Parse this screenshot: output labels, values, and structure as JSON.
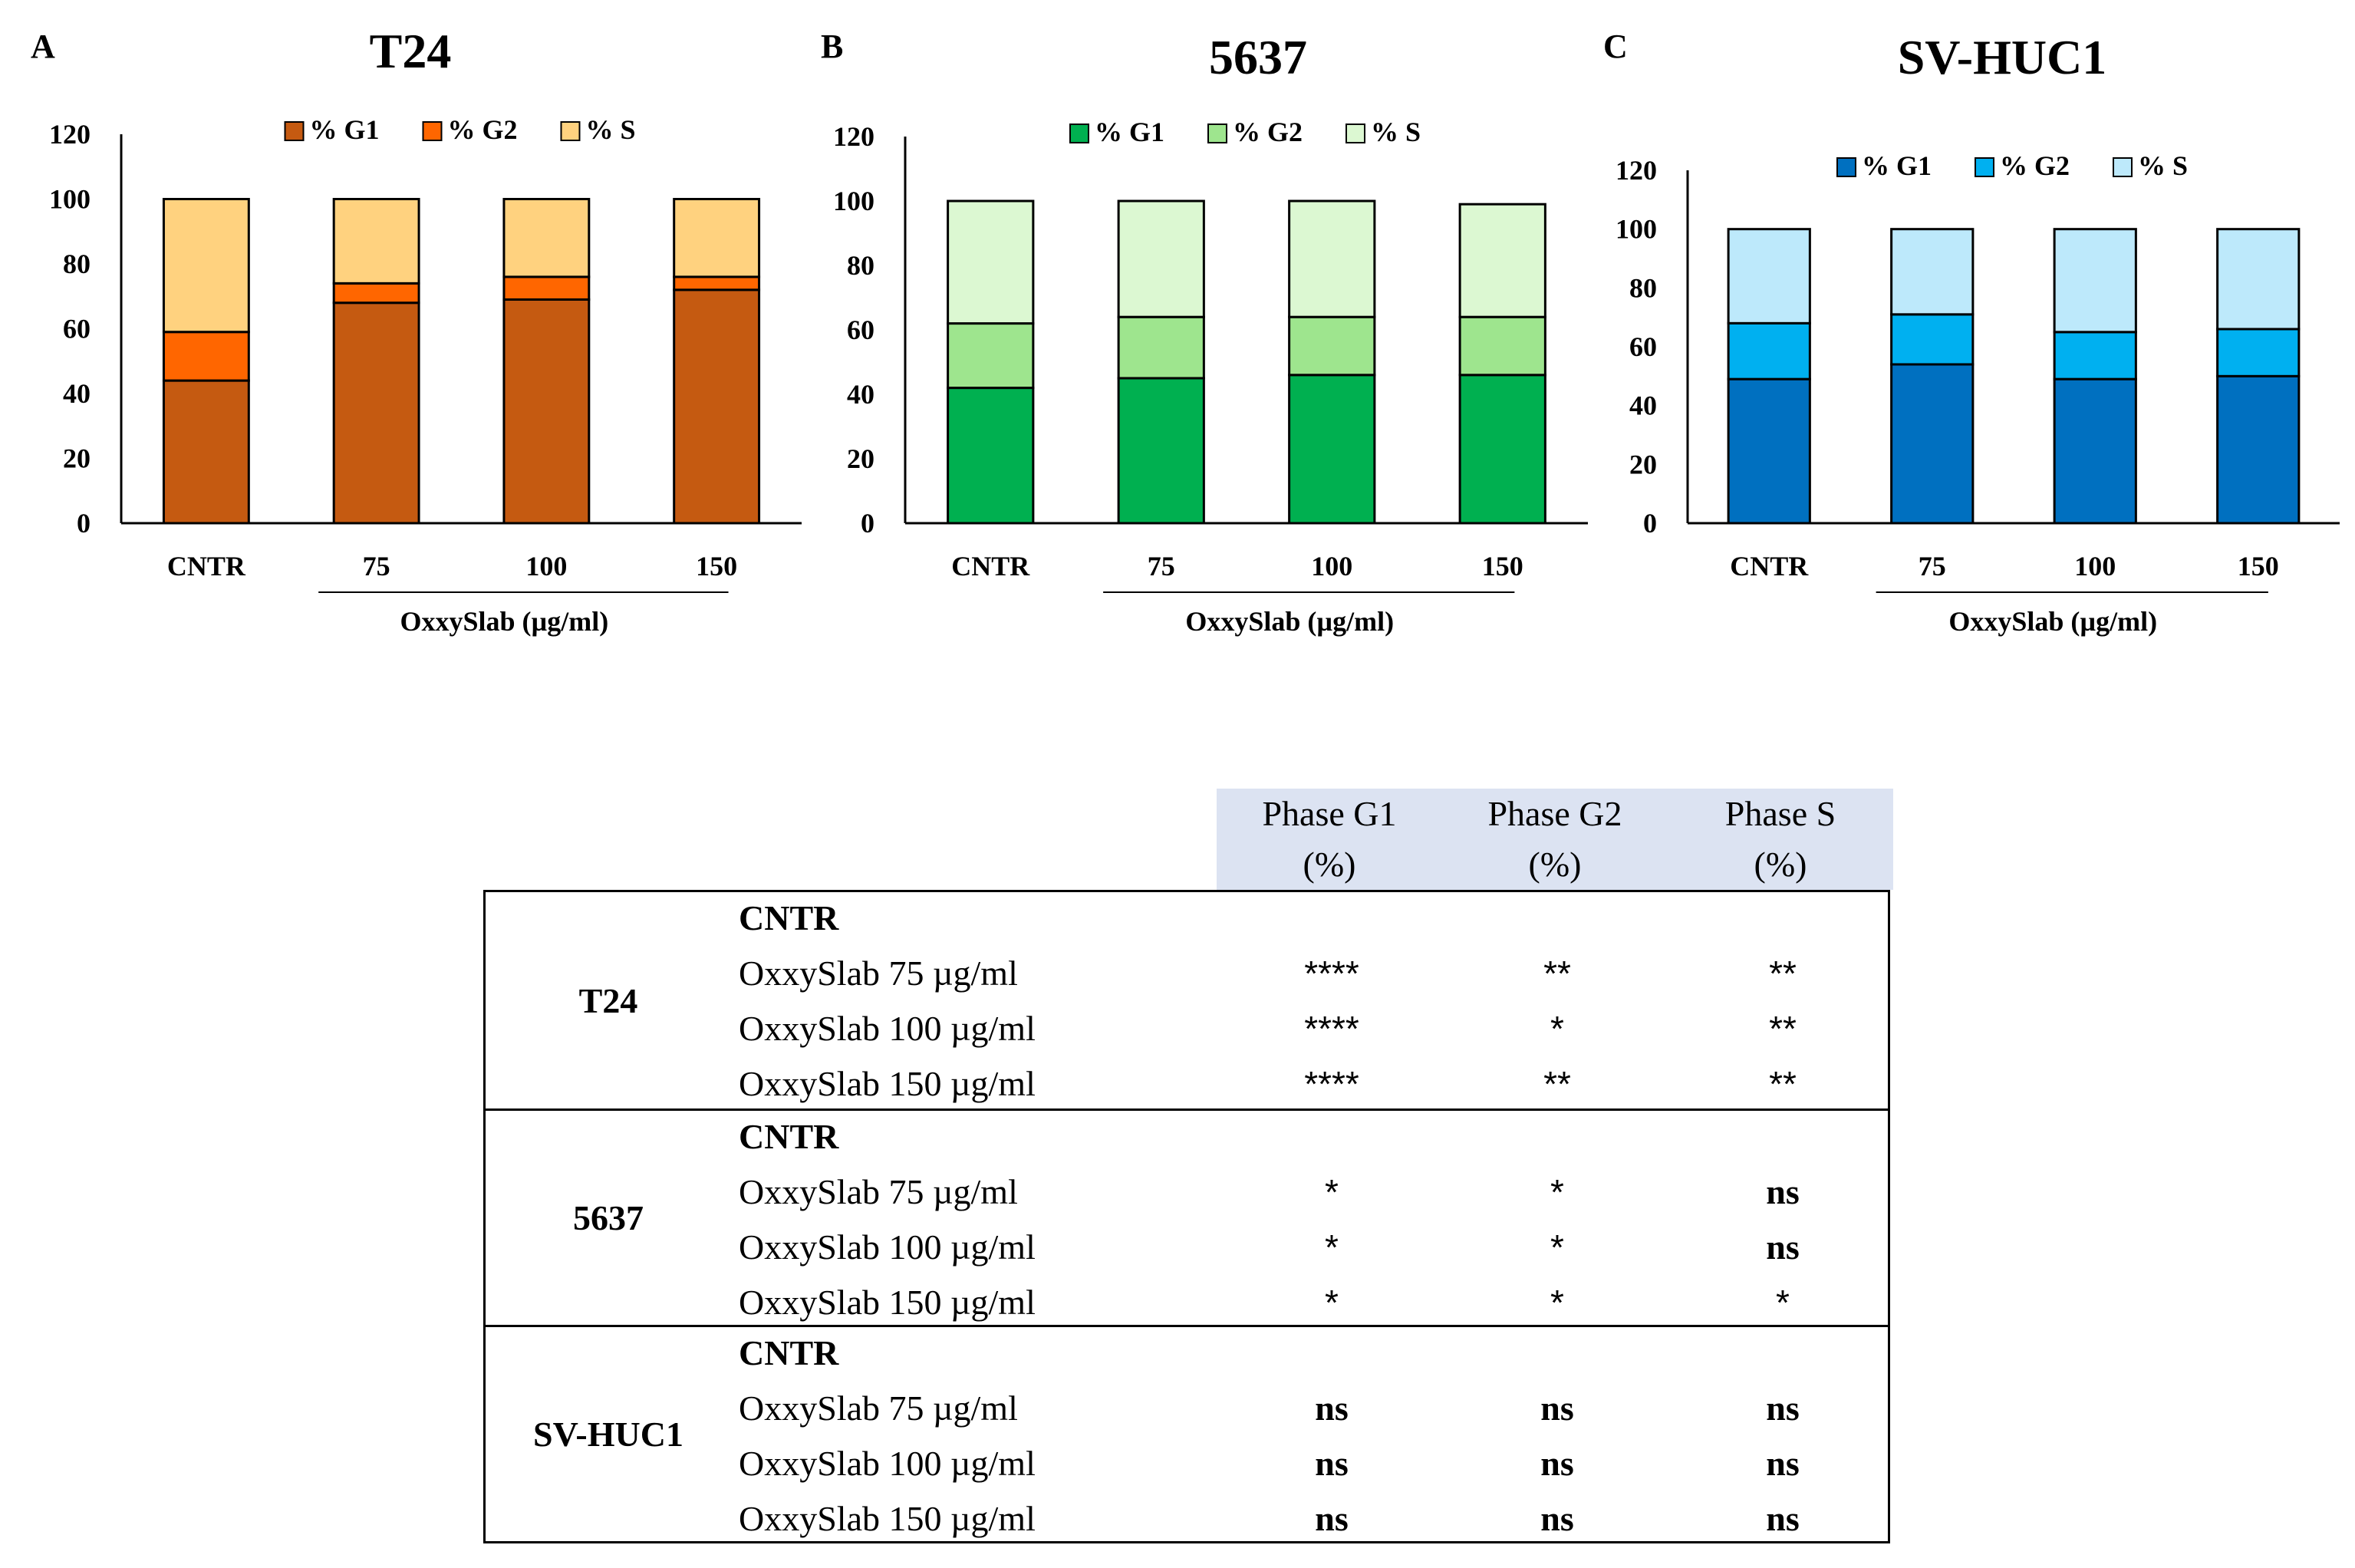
{
  "chart_data": [
    {
      "type": "bar",
      "stacked": true,
      "panel": "A",
      "title": "T24",
      "categories": [
        "CNTR",
        "75",
        "100",
        "150"
      ],
      "xlabel": "OxxySlab (µg/ml)",
      "ylim": [
        0,
        120
      ],
      "yticks": [
        0,
        20,
        40,
        60,
        80,
        100,
        120
      ],
      "legend_position": "top",
      "series": [
        {
          "name": "% G1",
          "color": "#c55a11",
          "values": [
            44,
            68,
            69,
            72
          ]
        },
        {
          "name": "% G2",
          "color": "#ff6600",
          "values": [
            15,
            6,
            7,
            4
          ]
        },
        {
          "name": "% S",
          "color": "#ffd27f",
          "values": [
            41,
            26,
            24,
            24
          ]
        }
      ]
    },
    {
      "type": "bar",
      "stacked": true,
      "panel": "B",
      "title": "5637",
      "categories": [
        "CNTR",
        "75",
        "100",
        "150"
      ],
      "xlabel": "OxxySlab (µg/ml)",
      "ylim": [
        0,
        120
      ],
      "yticks": [
        0,
        20,
        40,
        60,
        80,
        100,
        120
      ],
      "legend_position": "top",
      "series": [
        {
          "name": "% G1",
          "color": "#00b050",
          "values": [
            42,
            45,
            46,
            46
          ]
        },
        {
          "name": "% G2",
          "color": "#9ee58e",
          "values": [
            20,
            19,
            18,
            18
          ]
        },
        {
          "name": "% S",
          "color": "#dcf8d2",
          "values": [
            38,
            36,
            36,
            35
          ]
        }
      ]
    },
    {
      "type": "bar",
      "stacked": true,
      "panel": "C",
      "title": "SV-HUC1",
      "categories": [
        "CNTR",
        "75",
        "100",
        "150"
      ],
      "xlabel": "OxxySlab (µg/ml)",
      "ylim": [
        0,
        120
      ],
      "yticks": [
        0,
        20,
        40,
        60,
        80,
        100,
        120
      ],
      "legend_position": "top",
      "series": [
        {
          "name": "% G1",
          "color": "#0070c0",
          "values": [
            49,
            54,
            49,
            50
          ]
        },
        {
          "name": "% G2",
          "color": "#00b0f0",
          "values": [
            19,
            17,
            16,
            16
          ]
        },
        {
          "name": "% S",
          "color": "#bde9fb",
          "values": [
            32,
            29,
            35,
            34
          ]
        }
      ]
    }
  ],
  "stats_table": {
    "headers": [
      {
        "line1": "Phase G1",
        "line2": "(%)"
      },
      {
        "line1": "Phase G2",
        "line2": "(%)"
      },
      {
        "line1": "Phase S",
        "line2": "(%)"
      }
    ],
    "groups": [
      {
        "name": "T24",
        "rows": [
          {
            "condition": "CNTR",
            "g1": "",
            "g2": "",
            "s": ""
          },
          {
            "condition": "OxxySlab 75 µg/ml",
            "g1": "****",
            "g2": "**",
            "s": "**"
          },
          {
            "condition": "OxxySlab 100 µg/ml",
            "g1": "****",
            "g2": "*",
            "s": "**"
          },
          {
            "condition": "OxxySlab 150 µg/ml",
            "g1": "****",
            "g2": "**",
            "s": "**"
          }
        ]
      },
      {
        "name": "5637",
        "rows": [
          {
            "condition": "CNTR",
            "g1": "",
            "g2": "",
            "s": ""
          },
          {
            "condition": "OxxySlab 75 µg/ml",
            "g1": "*",
            "g2": "*",
            "s": "ns"
          },
          {
            "condition": "OxxySlab 100 µg/ml",
            "g1": "*",
            "g2": "*",
            "s": "ns"
          },
          {
            "condition": "OxxySlab 150 µg/ml",
            "g1": "*",
            "g2": "*",
            "s": "*"
          }
        ]
      },
      {
        "name": "SV-HUC1",
        "rows": [
          {
            "condition": "CNTR",
            "g1": "",
            "g2": "",
            "s": ""
          },
          {
            "condition": "OxxySlab 75 µg/ml",
            "g1": "ns",
            "g2": "ns",
            "s": "ns"
          },
          {
            "condition": "OxxySlab 100 µg/ml",
            "g1": "ns",
            "g2": "ns",
            "s": "ns"
          },
          {
            "condition": "OxxySlab 150 µg/ml",
            "g1": "ns",
            "g2": "ns",
            "s": "ns"
          }
        ]
      }
    ]
  }
}
